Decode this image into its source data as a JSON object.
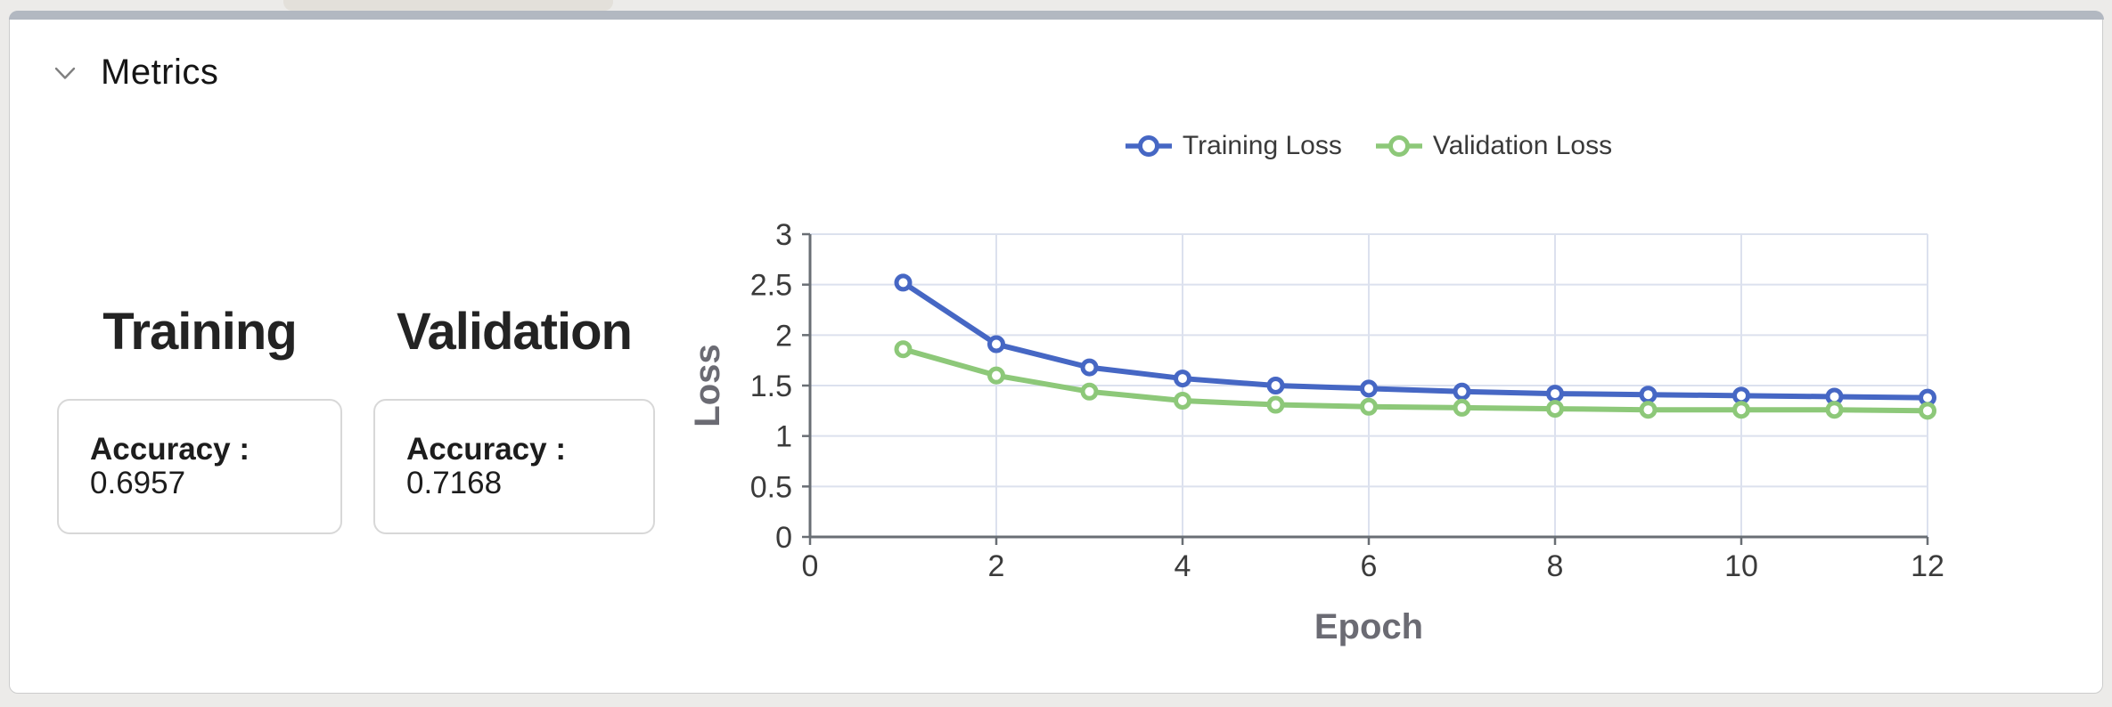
{
  "panel": {
    "title": "Metrics",
    "chevron_icon": "chevron-down",
    "top_strip_color": "#b2b8c1"
  },
  "metrics": {
    "columns": [
      {
        "heading": "Training",
        "accuracy_label": "Accuracy :",
        "accuracy_value": "0.6957"
      },
      {
        "heading": "Validation",
        "accuracy_label": "Accuracy :",
        "accuracy_value": "0.7168"
      }
    ]
  },
  "chart_data": {
    "type": "line",
    "x": [
      1,
      2,
      3,
      4,
      5,
      6,
      7,
      8,
      9,
      10,
      11,
      12
    ],
    "series": [
      {
        "name": "Training Loss",
        "color": "#4667c4",
        "values": [
          2.52,
          1.91,
          1.68,
          1.57,
          1.5,
          1.47,
          1.44,
          1.42,
          1.41,
          1.4,
          1.39,
          1.38
        ]
      },
      {
        "name": "Validation Loss",
        "color": "#8dc879",
        "values": [
          1.86,
          1.6,
          1.44,
          1.35,
          1.31,
          1.29,
          1.28,
          1.27,
          1.26,
          1.26,
          1.26,
          1.25
        ]
      }
    ],
    "title": "",
    "xlabel": "Epoch",
    "ylabel": "Loss",
    "xlim": [
      0,
      12
    ],
    "ylim": [
      0,
      3
    ],
    "xticks": [
      0,
      2,
      4,
      6,
      8,
      10,
      12
    ],
    "yticks": [
      0,
      0.5,
      1,
      1.5,
      2,
      2.5,
      3
    ],
    "grid": true,
    "legend_position": "top",
    "grid_color": "#dce1ee",
    "axis_color": "#696e74",
    "tick_label_color": "#3b3b3b",
    "axis_label_color": "#6b6b73",
    "marker_style": "open-circle"
  }
}
